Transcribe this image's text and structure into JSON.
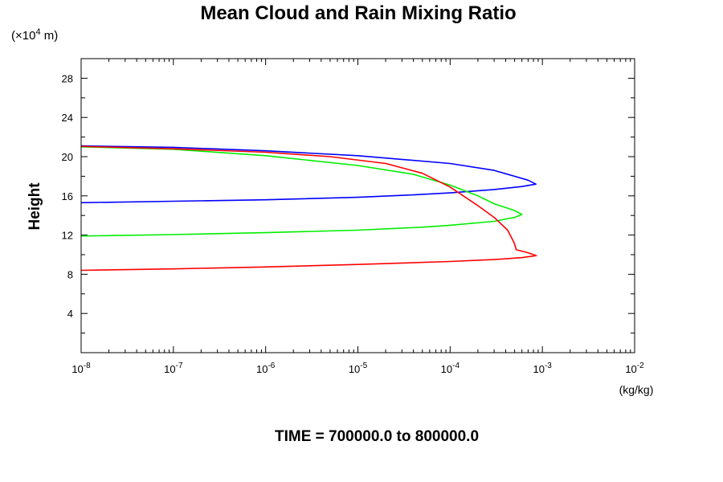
{
  "chart_data": {
    "type": "line",
    "title": "Mean Cloud and Rain Mixing Ratio",
    "subtitle": "TIME = 700000.0 to 800000.0",
    "xlabel": "",
    "x_unit": "(kg/kg)",
    "x_scale": "log",
    "xlim": [
      1e-08,
      0.01
    ],
    "x_ticks": [
      {
        "value": 1e-08,
        "mantissa": "10",
        "exponent": "-8"
      },
      {
        "value": 1e-07,
        "mantissa": "10",
        "exponent": "-7"
      },
      {
        "value": 1e-06,
        "mantissa": "10",
        "exponent": "-6"
      },
      {
        "value": 1e-05,
        "mantissa": "10",
        "exponent": "-5"
      },
      {
        "value": 0.0001,
        "mantissa": "10",
        "exponent": "-4"
      },
      {
        "value": 0.001,
        "mantissa": "10",
        "exponent": "-3"
      },
      {
        "value": 0.01,
        "mantissa": "10",
        "exponent": "-2"
      }
    ],
    "ylabel": "Height",
    "y_scale_factor": {
      "prefix": "(×10",
      "exponent": "4",
      "suffix": " m)"
    },
    "ylim": [
      0,
      30
    ],
    "y_ticks": [
      {
        "value": 4,
        "label": "4"
      },
      {
        "value": 8,
        "label": "8"
      },
      {
        "value": 12,
        "label": "12"
      },
      {
        "value": 16,
        "label": "16"
      },
      {
        "value": 20,
        "label": "20"
      },
      {
        "value": 24,
        "label": "24"
      },
      {
        "value": 28,
        "label": "28"
      }
    ],
    "grid": false,
    "series": [
      {
        "color": "#0000ff",
        "points": [
          [
            1e-08,
            15.3
          ],
          [
            1e-07,
            15.45
          ],
          [
            1e-06,
            15.6
          ],
          [
            1e-05,
            15.85
          ],
          [
            4e-05,
            16.1
          ],
          [
            0.0001,
            16.3
          ],
          [
            0.0003,
            16.65
          ],
          [
            0.0006,
            16.95
          ],
          [
            0.00085,
            17.2
          ],
          [
            0.0007,
            17.6
          ],
          [
            0.0003,
            18.6
          ],
          [
            0.0001,
            19.3
          ],
          [
            1e-05,
            20.1
          ],
          [
            1e-06,
            20.6
          ],
          [
            1e-07,
            20.95
          ],
          [
            1e-08,
            21.1
          ]
        ]
      },
      {
        "color": "#00ee00",
        "points": [
          [
            1e-08,
            11.9
          ],
          [
            1e-07,
            12.05
          ],
          [
            1e-06,
            12.25
          ],
          [
            1e-05,
            12.5
          ],
          [
            5e-05,
            12.8
          ],
          [
            0.0001,
            13.0
          ],
          [
            0.0003,
            13.4
          ],
          [
            0.0005,
            13.8
          ],
          [
            0.0006,
            14.1
          ],
          [
            0.0005,
            14.5
          ],
          [
            0.0003,
            15.2
          ],
          [
            0.0002,
            16.0
          ],
          [
            0.0001,
            17.1
          ],
          [
            4e-05,
            18.2
          ],
          [
            1e-05,
            19.1
          ],
          [
            1e-06,
            20.1
          ],
          [
            1e-07,
            20.75
          ],
          [
            1e-08,
            21.0
          ]
        ]
      },
      {
        "color": "#ff0000",
        "points": [
          [
            1e-08,
            8.4
          ],
          [
            1e-07,
            8.55
          ],
          [
            1e-06,
            8.75
          ],
          [
            1e-05,
            9.0
          ],
          [
            0.0001,
            9.3
          ],
          [
            0.0003,
            9.5
          ],
          [
            0.0006,
            9.7
          ],
          [
            0.00086,
            9.9
          ],
          [
            0.0007,
            10.2
          ],
          [
            0.00052,
            10.5
          ],
          [
            0.000495,
            11.2
          ],
          [
            0.00042,
            12.5
          ],
          [
            0.0003,
            13.8
          ],
          [
            0.0002,
            15.0
          ],
          [
            0.0001,
            16.9
          ],
          [
            5e-05,
            18.3
          ],
          [
            2e-05,
            19.3
          ],
          [
            5e-06,
            20.0
          ],
          [
            1e-06,
            20.45
          ],
          [
            1e-07,
            20.8
          ],
          [
            1e-08,
            21.05
          ]
        ]
      }
    ]
  }
}
